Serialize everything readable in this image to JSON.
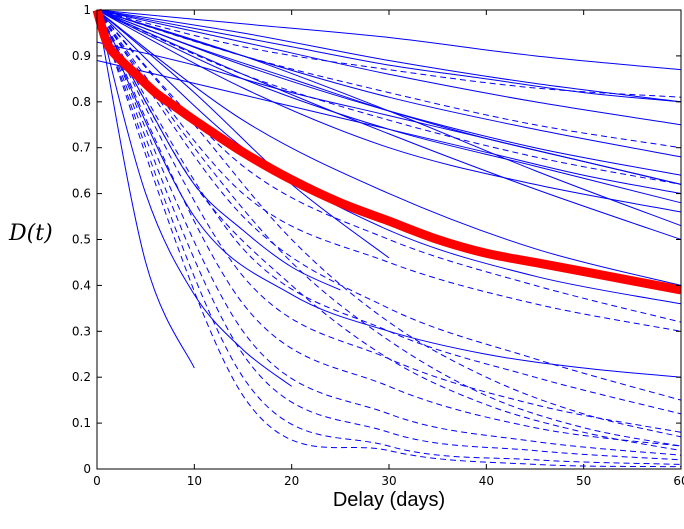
{
  "chart_data": {
    "type": "line",
    "xlabel": "Delay (days)",
    "ylabel": "D(t)",
    "xlim": [
      0,
      60
    ],
    "ylim": [
      0,
      1
    ],
    "xticks": [
      0,
      10,
      20,
      30,
      40,
      50,
      60
    ],
    "yticks": [
      0,
      0.1,
      0.2,
      0.3,
      0.4,
      0.5,
      0.6,
      0.7,
      0.8,
      0.9,
      1
    ],
    "xtick_labels": [
      "0",
      "10",
      "20",
      "30",
      "40",
      "50",
      "60"
    ],
    "ytick_labels": [
      "0",
      "0.1",
      "0.2",
      "0.3",
      "0.4",
      "0.5",
      "0.6",
      "0.7",
      "0.8",
      "0.9",
      "1"
    ],
    "grid": false,
    "legend": "none",
    "colors": {
      "individual": "#0000ff",
      "average": "#ff0000"
    },
    "individual_curves_solid": [
      {
        "x": [
          0,
          15,
          30,
          45,
          60
        ],
        "y": [
          1,
          0.97,
          0.94,
          0.9,
          0.87
        ]
      },
      {
        "x": [
          0,
          15,
          30,
          45,
          60
        ],
        "y": [
          1,
          0.95,
          0.89,
          0.84,
          0.8
        ]
      },
      {
        "x": [
          0,
          15,
          30,
          45,
          60
        ],
        "y": [
          1,
          0.93,
          0.86,
          0.8,
          0.75
        ]
      },
      {
        "x": [
          0,
          15,
          30,
          45,
          60
        ],
        "y": [
          1,
          0.9,
          0.81,
          0.74,
          0.68
        ]
      },
      {
        "x": [
          0,
          15,
          30,
          45,
          60
        ],
        "y": [
          1,
          0.88,
          0.78,
          0.7,
          0.64
        ]
      },
      {
        "x": [
          0,
          15,
          30,
          45,
          60
        ],
        "y": [
          1,
          0.85,
          0.74,
          0.66,
          0.58
        ]
      },
      {
        "x": [
          0,
          15,
          30,
          45,
          60
        ],
        "y": [
          1,
          0.83,
          0.7,
          0.62,
          0.56
        ]
      },
      {
        "x": [
          0,
          15,
          30,
          45,
          60
        ],
        "y": [
          1,
          0.76,
          0.6,
          0.48,
          0.4
        ]
      },
      {
        "x": [
          0,
          15,
          30,
          45,
          60
        ],
        "y": [
          1,
          0.7,
          0.52,
          0.42,
          0.36
        ]
      },
      {
        "x": [
          0,
          15,
          30,
          45,
          60
        ],
        "y": [
          1,
          0.86,
          0.73,
          0.61,
          0.5
        ]
      },
      {
        "x": [
          0,
          10,
          20,
          30
        ],
        "y": [
          1,
          0.82,
          0.62,
          0.46
        ]
      },
      {
        "x": [
          0,
          10,
          20,
          30,
          40,
          50,
          60
        ],
        "y": [
          1,
          0.96,
          0.92,
          0.88,
          0.85,
          0.82,
          0.8
        ]
      },
      {
        "x": [
          0,
          5,
          10,
          15,
          20,
          25
        ],
        "y": [
          1,
          0.8,
          0.62,
          0.52,
          0.44,
          0.39
        ]
      },
      {
        "x": [
          0,
          10,
          20,
          30,
          40,
          50,
          60
        ],
        "y": [
          1,
          0.55,
          0.38,
          0.3,
          0.25,
          0.22,
          0.2
        ]
      },
      {
        "x": [
          0,
          5,
          10,
          15,
          20
        ],
        "y": [
          1,
          0.6,
          0.38,
          0.26,
          0.18
        ]
      },
      {
        "x": [
          0,
          5,
          10
        ],
        "y": [
          1,
          0.45,
          0.22
        ]
      },
      {
        "x": [
          0,
          10,
          20,
          30,
          40,
          50,
          60
        ],
        "y": [
          1,
          0.92,
          0.85,
          0.78,
          0.72,
          0.67,
          0.62
        ]
      },
      {
        "x": [
          0,
          10,
          20,
          30,
          40,
          50,
          60
        ],
        "y": [
          0.93,
          0.88,
          0.82,
          0.77,
          0.72,
          0.67,
          0.62
        ]
      },
      {
        "x": [
          0,
          10,
          20,
          30,
          40,
          50,
          60
        ],
        "y": [
          0.89,
          0.84,
          0.79,
          0.74,
          0.69,
          0.64,
          0.6
        ]
      },
      {
        "x": [
          0,
          15,
          30,
          45,
          60
        ],
        "y": [
          1,
          0.9,
          0.78,
          0.65,
          0.53
        ]
      }
    ],
    "individual_curves_dashed": [
      {
        "x": [
          0,
          15,
          30,
          45,
          60
        ],
        "y": [
          1,
          0.92,
          0.87,
          0.83,
          0.81
        ]
      },
      {
        "x": [
          0,
          15,
          30,
          45,
          60
        ],
        "y": [
          1,
          0.9,
          0.82,
          0.75,
          0.7
        ]
      },
      {
        "x": [
          0,
          15,
          30,
          45,
          60
        ],
        "y": [
          1,
          0.86,
          0.76,
          0.68,
          0.62
        ]
      },
      {
        "x": [
          0,
          15,
          30,
          45,
          60
        ],
        "y": [
          1,
          0.66,
          0.5,
          0.4,
          0.32
        ]
      },
      {
        "x": [
          0,
          15,
          30,
          45,
          60
        ],
        "y": [
          1,
          0.6,
          0.45,
          0.36,
          0.3
        ]
      },
      {
        "x": [
          0,
          15,
          30,
          45,
          60
        ],
        "y": [
          1,
          0.55,
          0.35,
          0.24,
          0.15
        ]
      },
      {
        "x": [
          0,
          15,
          30,
          45,
          60
        ],
        "y": [
          1,
          0.48,
          0.3,
          0.2,
          0.12
        ]
      },
      {
        "x": [
          0,
          15,
          30,
          45,
          60
        ],
        "y": [
          1,
          0.42,
          0.24,
          0.14,
          0.08
        ]
      },
      {
        "x": [
          0,
          15,
          30,
          45,
          60
        ],
        "y": [
          1,
          0.36,
          0.18,
          0.09,
          0.05
        ]
      },
      {
        "x": [
          0,
          15,
          30,
          45,
          60
        ],
        "y": [
          1,
          0.3,
          0.12,
          0.06,
          0.03
        ]
      },
      {
        "x": [
          0,
          15,
          30,
          45,
          60
        ],
        "y": [
          1,
          0.25,
          0.08,
          0.04,
          0.02
        ]
      },
      {
        "x": [
          0,
          15,
          30,
          45,
          60
        ],
        "y": [
          1,
          0.2,
          0.05,
          0.02,
          0.01
        ]
      },
      {
        "x": [
          0,
          15,
          30,
          45,
          60
        ],
        "y": [
          1,
          0.16,
          0.04,
          0.01,
          0.005
        ]
      },
      {
        "x": [
          0,
          10,
          20,
          30,
          40,
          50,
          60
        ],
        "y": [
          1,
          0.75,
          0.5,
          0.32,
          0.2,
          0.12,
          0.07
        ]
      },
      {
        "x": [
          0,
          10,
          20,
          30,
          40,
          50,
          60
        ],
        "y": [
          1,
          0.7,
          0.45,
          0.28,
          0.16,
          0.09,
          0.05
        ]
      },
      {
        "x": [
          0,
          10,
          20,
          30,
          40,
          50,
          60
        ],
        "y": [
          1,
          0.62,
          0.4,
          0.24,
          0.14,
          0.08,
          0.04
        ]
      }
    ],
    "average_curve": {
      "x": [
        0,
        1,
        2,
        4,
        6,
        8,
        10,
        15,
        20,
        25,
        30,
        35,
        40,
        45,
        50,
        55,
        60
      ],
      "y": [
        1,
        0.93,
        0.9,
        0.86,
        0.82,
        0.79,
        0.76,
        0.69,
        0.63,
        0.58,
        0.54,
        0.5,
        0.47,
        0.45,
        0.43,
        0.41,
        0.39
      ]
    }
  }
}
